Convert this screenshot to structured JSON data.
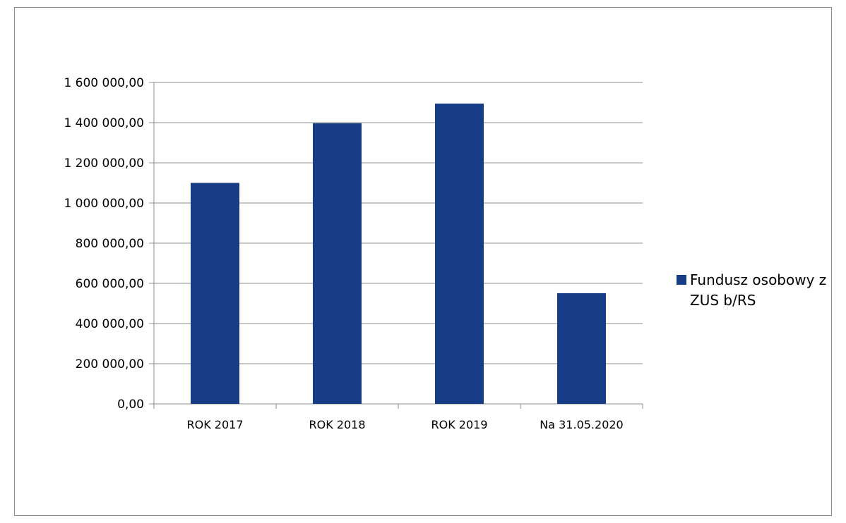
{
  "chart_data": {
    "type": "bar",
    "categories": [
      "ROK 2017",
      "ROK 2018",
      "ROK 2019",
      "Na 31.05.2020"
    ],
    "series": [
      {
        "name": "Fundusz osobowy z ZUS b/RS",
        "values": [
          1100000,
          1397000,
          1495000,
          551000
        ],
        "color": "#173d86"
      }
    ],
    "ylim": [
      0,
      1600000
    ],
    "yticks": [
      0,
      200000,
      400000,
      600000,
      800000,
      1000000,
      1200000,
      1400000,
      1600000
    ],
    "ytick_labels": [
      "0,00",
      "200 000,00",
      "400 000,00",
      "600 000,00",
      "800 000,00",
      "1 000 000,00",
      "1 200 000,00",
      "1 400 000,00",
      "1 600 000,00"
    ],
    "title": "",
    "xlabel": "",
    "ylabel": "",
    "grid": true,
    "legend_position": "right",
    "gridline_color": "#8c8c8c"
  }
}
